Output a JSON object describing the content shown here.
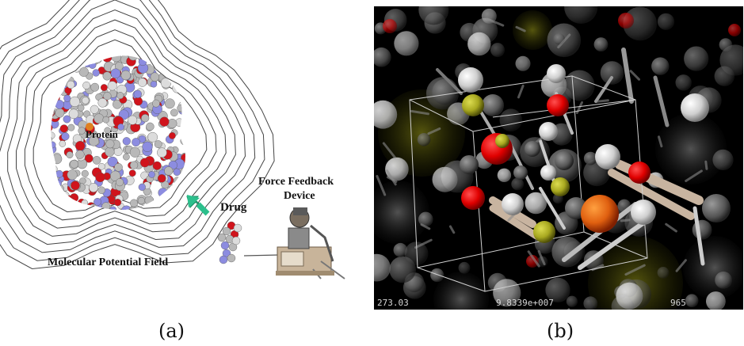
{
  "panel_a": {
    "protein_label": "Protein",
    "drug_label": "Drug",
    "device_label_line1": "Force Feedback",
    "device_label_line2": "Device",
    "field_label": "Molecular Potential Field",
    "caption": "(a)",
    "colors": {
      "oxygen": "#d0141c",
      "nitrogen": "#8c8ce0",
      "carbon": "#b8b8b8",
      "arrow": "#2cbf8c"
    }
  },
  "panel_b": {
    "readout_left": "273.03",
    "readout_center": "9.8339e+007",
    "readout_right": "965",
    "caption": "(b)",
    "colors": {
      "background": "#000000",
      "atom_red": "#e00000",
      "atom_yellow": "#a8a820",
      "atom_white": "#e8e8e8",
      "bond": "#c8b4a0"
    }
  }
}
